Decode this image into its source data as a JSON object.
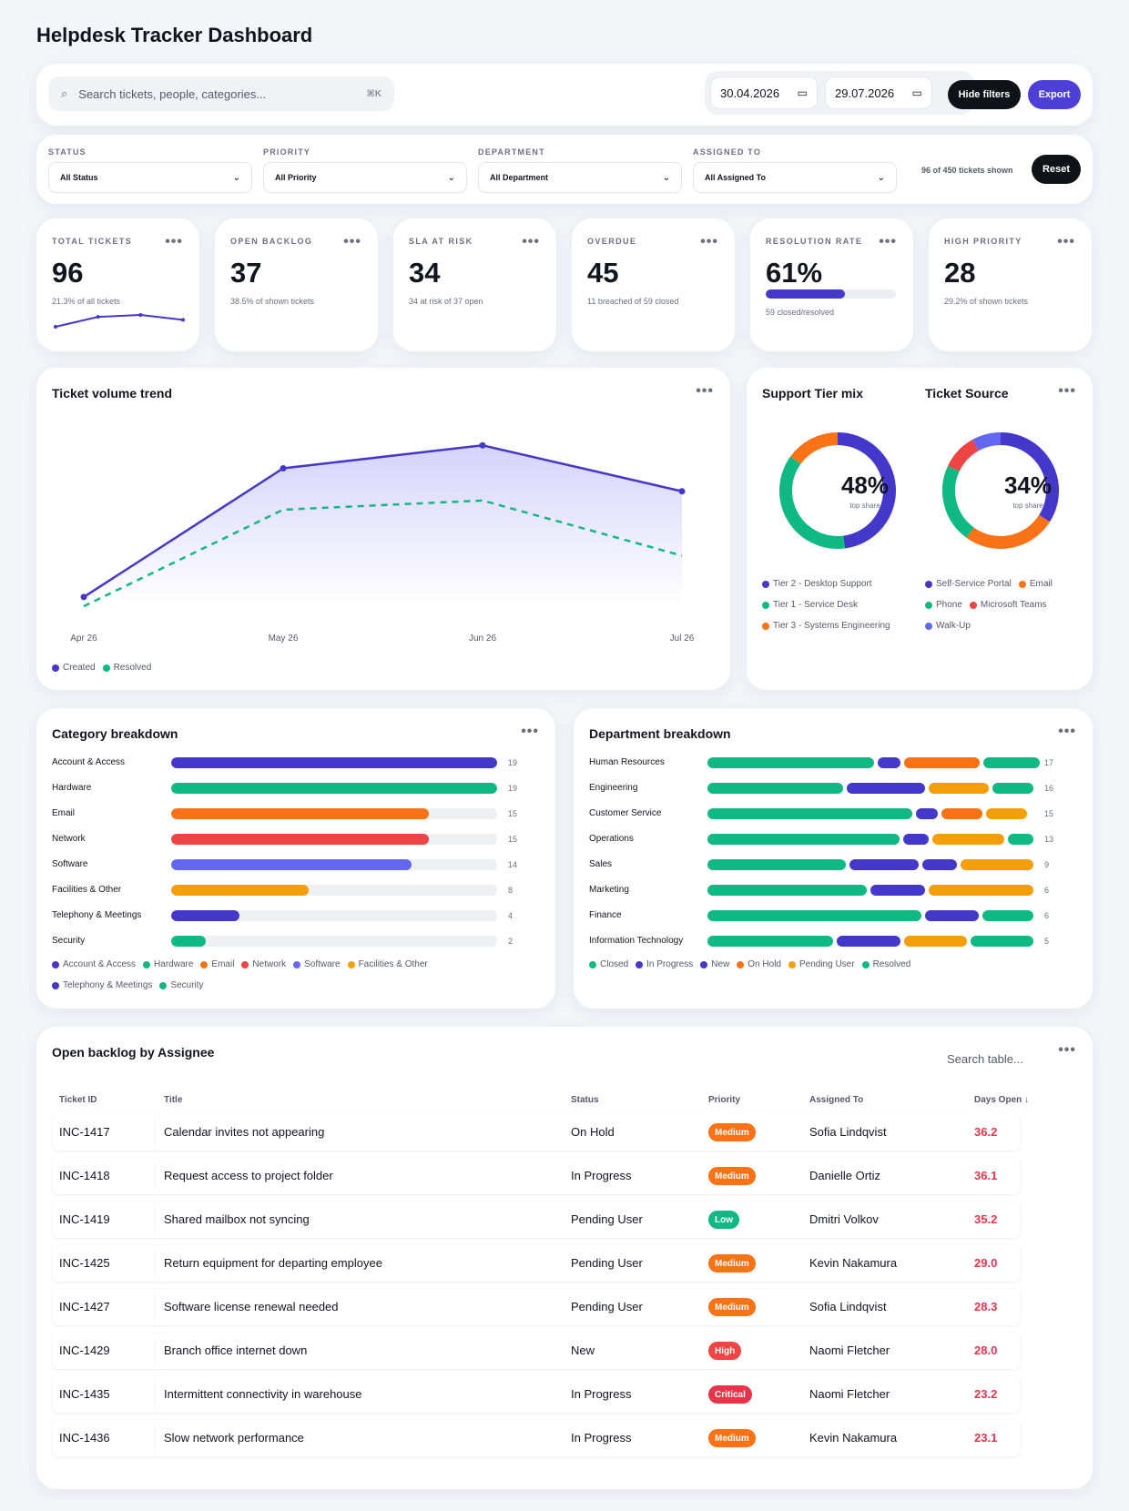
{
  "page_title": "Helpdesk Tracker Dashboard",
  "toolbar": {
    "search_placeholder": "Search tickets, people, categories...",
    "search_shortcut": "⌘K",
    "date_from": "30.04.2026",
    "date_to": "29.07.2026",
    "hide_filters_label": "Hide filters",
    "export_label": "Export"
  },
  "filters": {
    "status_label": "STATUS",
    "status_value": "All Status",
    "priority_label": "PRIORITY",
    "priority_value": "All Priority",
    "department_label": "DEPARTMENT",
    "department_value": "All Department",
    "assigned_label": "ASSIGNED TO",
    "assigned_value": "All Assigned To",
    "count_text": "96 of 450 tickets shown",
    "reset_label": "Reset"
  },
  "kpis": [
    {
      "label": "TOTAL TICKETS",
      "value": "96",
      "sub": "21.3% of all tickets",
      "sparkline": [
        12,
        22,
        24,
        19
      ]
    },
    {
      "label": "OPEN BACKLOG",
      "value": "37",
      "sub": "38.5% of shown tickets"
    },
    {
      "label": "SLA AT RISK",
      "value": "34",
      "sub": "34 at risk of 37 open"
    },
    {
      "label": "OVERDUE",
      "value": "45",
      "sub": "11 breached of 59 closed"
    },
    {
      "label": "RESOLUTION RATE",
      "value": "61%",
      "sub": "59 closed/resolved",
      "progress": 0.61
    },
    {
      "label": "HIGH PRIORITY",
      "value": "28",
      "sub": "29.2% of shown tickets"
    }
  ],
  "trend": {
    "title": "Ticket volume trend",
    "chart_data": {
      "type": "line",
      "x": [
        "Apr 26",
        "May 26",
        "Jun 26",
        "Jul 26"
      ],
      "series": [
        {
          "name": "Created",
          "values": [
            2,
            30,
            35,
            25
          ]
        },
        {
          "name": "Resolved",
          "values": [
            0,
            21,
            23,
            11
          ]
        }
      ],
      "ylim": [
        0,
        40
      ]
    },
    "legend": [
      "Created",
      "Resolved"
    ],
    "colors": {
      "created": "#4338ca",
      "resolved": "#10b981"
    }
  },
  "donuts": {
    "tier_title": "Support Tier mix",
    "tier_center": "48%",
    "tier_center_sub": "top share",
    "tier_chart": {
      "type": "pie",
      "labels": [
        "Tier 2 - Desktop Support",
        "Tier 1 - Service Desk",
        "Tier 3 - Systems Engineering"
      ],
      "values": [
        48,
        37,
        15
      ],
      "colors": [
        "#4338ca",
        "#10b981",
        "#f97316"
      ]
    },
    "source_title": "Ticket Source",
    "source_center": "34%",
    "source_center_sub": "top share",
    "source_chart": {
      "type": "pie",
      "labels": [
        "Self-Service Portal",
        "Email",
        "Phone",
        "Microsoft Teams",
        "Walk-Up"
      ],
      "values": [
        34,
        26,
        22,
        10,
        8
      ],
      "colors": [
        "#4338ca",
        "#f97316",
        "#10b981",
        "#ef4444",
        "#6366f1"
      ]
    }
  },
  "category": {
    "title": "Category breakdown",
    "chart_data": {
      "type": "bar",
      "categories": [
        "Account & Access",
        "Hardware",
        "Email",
        "Network",
        "Software",
        "Facilities & Other",
        "Telephony & Meetings",
        "Security"
      ],
      "values": [
        19,
        19,
        15,
        15,
        14,
        8,
        4,
        2
      ],
      "colors": [
        "#4338ca",
        "#10b981",
        "#f97316",
        "#ef4444",
        "#6366f1",
        "#f59e0b",
        "#4338ca",
        "#10b981"
      ],
      "xlim": [
        0,
        19
      ]
    },
    "value_labels": [
      "19",
      "19",
      "15",
      "15",
      "14",
      "8",
      "4",
      "2"
    ]
  },
  "department": {
    "title": "Department breakdown",
    "chart_data": {
      "type": "bar",
      "stacked": true,
      "categories": [
        "Human Resources",
        "Engineering",
        "Customer Service",
        "Operations",
        "Sales",
        "Marketing",
        "Finance",
        "Information Technology"
      ],
      "totals": [
        17,
        16,
        15,
        13,
        9,
        6,
        6,
        5
      ],
      "segments": [
        [
          [
            "#10b981",
            0.53
          ],
          [
            "#4338ca",
            0.07
          ],
          [
            "#f97316",
            0.24
          ],
          [
            "#10b981",
            0.18
          ]
        ],
        [
          [
            "#10b981",
            0.43
          ],
          [
            "#4338ca",
            0.25
          ],
          [
            "#f59e0b",
            0.19
          ],
          [
            "#10b981",
            0.13
          ]
        ],
        [
          [
            "#10b981",
            0.65
          ],
          [
            "#4338ca",
            0.07
          ],
          [
            "#f97316",
            0.13
          ],
          [
            "#f59e0b",
            0.13
          ]
        ],
        [
          [
            "#10b981",
            0.61
          ],
          [
            "#4338ca",
            0.08
          ],
          [
            "#f59e0b",
            0.23
          ],
          [
            "#10b981",
            0.08
          ]
        ],
        [
          [
            "#10b981",
            0.44
          ],
          [
            "#4338ca",
            0.22
          ],
          [
            "#4338ca",
            0.11
          ],
          [
            "#f59e0b",
            0.23
          ]
        ],
        [
          [
            "#10b981",
            0.5
          ],
          [
            "#4338ca",
            0.17
          ],
          [
            "#f59e0b",
            0.33
          ]
        ],
        [
          [
            "#10b981",
            0.67
          ],
          [
            "#4338ca",
            0.17
          ],
          [
            "#10b981",
            0.16
          ]
        ],
        [
          [
            "#10b981",
            0.4
          ],
          [
            "#4338ca",
            0.2
          ],
          [
            "#f59e0b",
            0.2
          ],
          [
            "#10b981",
            0.2
          ]
        ]
      ]
    },
    "value_labels": [
      "17",
      "16",
      "15",
      "13",
      "9",
      "6",
      "6",
      "5"
    ],
    "legend": [
      {
        "name": "Closed",
        "color": "#10b981"
      },
      {
        "name": "In Progress",
        "color": "#4338ca"
      },
      {
        "name": "New",
        "color": "#4338ca"
      },
      {
        "name": "On Hold",
        "color": "#f97316"
      },
      {
        "name": "Pending User",
        "color": "#f59e0b"
      },
      {
        "name": "Resolved",
        "color": "#10b981"
      }
    ]
  },
  "backlog": {
    "title": "Open backlog by Assignee",
    "search_placeholder": "Search table...",
    "columns": [
      "Ticket ID",
      "Title",
      "Status",
      "Priority",
      "Assigned To",
      "Days Open ↓"
    ],
    "rows": [
      {
        "id": "INC-1417",
        "title": "Calendar invites not appearing",
        "status": "On Hold",
        "priority": "Medium",
        "assignee": "Sofia Lindqvist",
        "days": "36.2"
      },
      {
        "id": "INC-1418",
        "title": "Request access to project folder",
        "status": "In Progress",
        "priority": "Medium",
        "assignee": "Danielle Ortiz",
        "days": "36.1"
      },
      {
        "id": "INC-1419",
        "title": "Shared mailbox not syncing",
        "status": "Pending User",
        "priority": "Low",
        "assignee": "Dmitri Volkov",
        "days": "35.2"
      },
      {
        "id": "INC-1425",
        "title": "Return equipment for departing employee",
        "status": "Pending User",
        "priority": "Medium",
        "assignee": "Kevin Nakamura",
        "days": "29.0"
      },
      {
        "id": "INC-1427",
        "title": "Software license renewal needed",
        "status": "Pending User",
        "priority": "Medium",
        "assignee": "Sofia Lindqvist",
        "days": "28.3"
      },
      {
        "id": "INC-1429",
        "title": "Branch office internet down",
        "status": "New",
        "priority": "High",
        "assignee": "Naomi Fletcher",
        "days": "28.0"
      },
      {
        "id": "INC-1435",
        "title": "Intermittent connectivity in warehouse",
        "status": "In Progress",
        "priority": "Critical",
        "assignee": "Naomi Fletcher",
        "days": "23.2"
      },
      {
        "id": "INC-1436",
        "title": "Slow network performance",
        "status": "In Progress",
        "priority": "Medium",
        "assignee": "Kevin Nakamura",
        "days": "23.1"
      }
    ],
    "priority_colors": {
      "Medium": "#f97316",
      "Low": "#10b981",
      "High": "#ef4444",
      "Critical": "#e5354b"
    }
  }
}
